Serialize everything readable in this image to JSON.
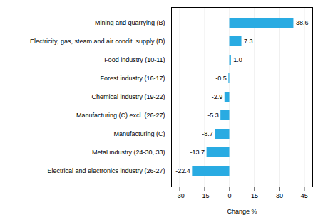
{
  "chart_data": {
    "type": "bar",
    "orientation": "horizontal",
    "categories": [
      "Electrical and electronics industry (26-27)",
      "Metal industry (24-30, 33)",
      "Manufacturing (C)",
      "Manufacturing (C) excl. (26-27)",
      "Chemical industry (19-22)",
      "Forest industry (16-17)",
      "Food industry (10-11)",
      "Electricity, gas, steam and air condit. supply (D)",
      "Mining and quarrying (B)"
    ],
    "values": [
      -22.4,
      -13.7,
      -8.7,
      -5.3,
      -2.9,
      -0.5,
      1.0,
      7.3,
      38.6
    ],
    "value_labels": [
      "-22.4",
      "-13.7",
      "-8.7",
      "-5.3",
      "-2.9",
      "-0.5",
      "1.0",
      "7.3",
      "38.6"
    ],
    "color": "#29abe2",
    "xlim": [
      -35,
      50
    ],
    "xticks": [
      -30,
      -15,
      0,
      15,
      30,
      45
    ],
    "xlabel": "Change %",
    "grid": true,
    "data_labels": true
  }
}
